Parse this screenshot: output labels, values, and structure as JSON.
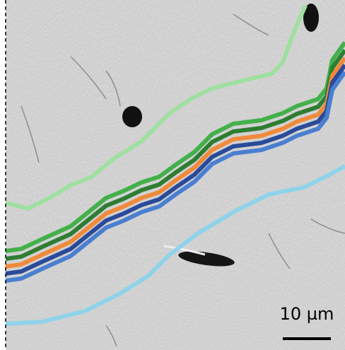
{
  "scale_bar": {
    "label": "10 µm"
  }
}
